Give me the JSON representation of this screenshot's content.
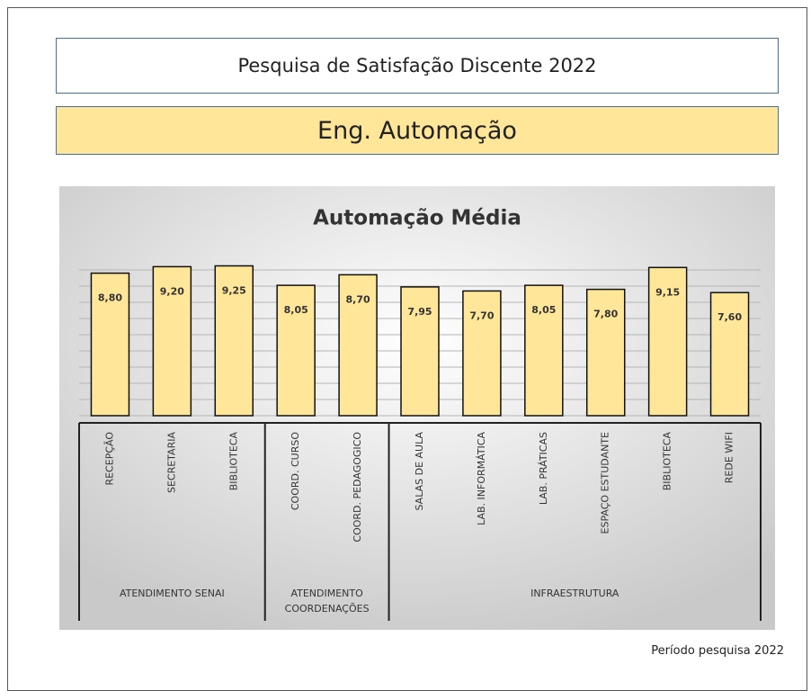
{
  "header": {
    "title": "Pesquisa de Satisfação Discente 2022",
    "subtitle": "Eng.  Automação"
  },
  "footer": "Período pesquisa 2022",
  "chart_data": {
    "type": "bar",
    "title": "Automação Média",
    "categories": [
      "RECEPÇÃO",
      "SECRETARIA",
      "BIBLIOTECA",
      "COORD. CURSO",
      "COORD. PEDAGOGICO",
      "SALAS DE AULA",
      "LAB. INFORMÁTICA",
      "LAB. PRÁTICAS",
      "ESPAÇO ESTUDANTE",
      "BIBLIOTECA",
      "REDE WIFI"
    ],
    "values": [
      8.8,
      9.2,
      9.25,
      8.05,
      8.7,
      7.95,
      7.7,
      8.05,
      7.8,
      9.15,
      7.6
    ],
    "value_labels": [
      "8,80",
      "9,20",
      "9,25",
      "8,05",
      "8,70",
      "7,95",
      "7,70",
      "8,05",
      "7,80",
      "9,15",
      "7,60"
    ],
    "groups": [
      [
        "ATENDIMENTO SENAI"
      ],
      [
        "ATENDIMENTO",
        "COORDENAÇÕES"
      ],
      [
        "INFRAESTRUTURA"
      ]
    ],
    "color": "#ffe699",
    "ylim": [
      0,
      10
    ],
    "yticks": [
      0,
      1,
      2,
      3,
      4,
      5,
      6,
      7,
      8,
      9
    ],
    "grid": true
  }
}
